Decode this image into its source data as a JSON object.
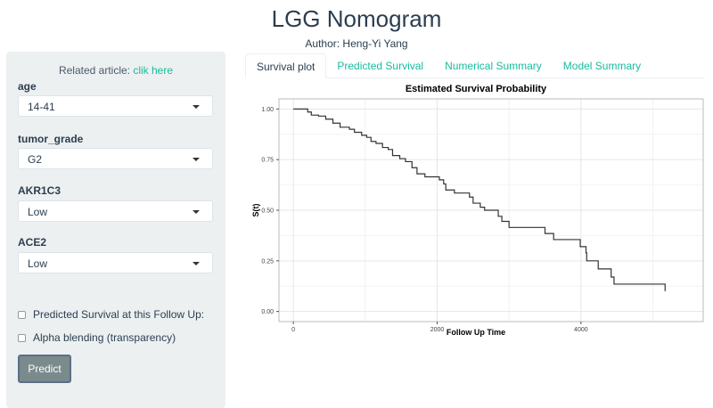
{
  "header": {
    "title": "LGG Nomogram",
    "author": "Author: Heng-Yi Yang"
  },
  "sidebar": {
    "related_prefix": "Related article: ",
    "related_link": "clik here",
    "fields": [
      {
        "label": "age",
        "value": "14-41"
      },
      {
        "label": "tumor_grade",
        "value": "G2"
      },
      {
        "label": "AKR1C3",
        "value": "Low"
      },
      {
        "label": "ACE2",
        "value": "Low"
      }
    ],
    "checkboxes": [
      {
        "label": "Predicted Survival at this Follow Up:",
        "checked": false
      },
      {
        "label": "Alpha blending (transparency)",
        "checked": false
      }
    ],
    "predict_label": "Predict"
  },
  "tabs": [
    {
      "label": "Survival plot",
      "active": true
    },
    {
      "label": "Predicted Survival"
    },
    {
      "label": "Numerical Summary"
    },
    {
      "label": "Model Summary"
    }
  ],
  "chart_data": {
    "type": "line",
    "title": "Estimated Survival Probability",
    "xlabel": "Follow Up Time",
    "ylabel": "S(t)",
    "xlim": [
      -200,
      5700
    ],
    "ylim": [
      -0.05,
      1.05
    ],
    "xticks": [
      0,
      2000,
      4000
    ],
    "yticks": [
      0,
      0.25,
      0.5,
      0.75,
      1
    ],
    "ytick_labels": [
      "0.00",
      "0.25",
      "0.50",
      "0.75",
      "1.00"
    ],
    "xtick_labels": [
      "0",
      "2000",
      "4000"
    ],
    "grid": true,
    "step": true,
    "points": [
      [
        0,
        1
      ],
      [
        100,
        1
      ],
      [
        200,
        0.985
      ],
      [
        250,
        0.97
      ],
      [
        350,
        0.965
      ],
      [
        450,
        0.95
      ],
      [
        550,
        0.93
      ],
      [
        650,
        0.91
      ],
      [
        780,
        0.9
      ],
      [
        850,
        0.885
      ],
      [
        950,
        0.87
      ],
      [
        1020,
        0.86
      ],
      [
        1080,
        0.84
      ],
      [
        1150,
        0.83
      ],
      [
        1240,
        0.81
      ],
      [
        1320,
        0.8
      ],
      [
        1380,
        0.77
      ],
      [
        1480,
        0.755
      ],
      [
        1560,
        0.74
      ],
      [
        1650,
        0.71
      ],
      [
        1720,
        0.68
      ],
      [
        1830,
        0.665
      ],
      [
        2030,
        0.65
      ],
      [
        2090,
        0.63
      ],
      [
        2120,
        0.6
      ],
      [
        2240,
        0.585
      ],
      [
        2450,
        0.565
      ],
      [
        2500,
        0.535
      ],
      [
        2600,
        0.515
      ],
      [
        2660,
        0.5
      ],
      [
        2850,
        0.47
      ],
      [
        2900,
        0.445
      ],
      [
        3000,
        0.415
      ],
      [
        3500,
        0.385
      ],
      [
        3620,
        0.355
      ],
      [
        3990,
        0.32
      ],
      [
        4070,
        0.29
      ],
      [
        4080,
        0.25
      ],
      [
        4240,
        0.21
      ],
      [
        4420,
        0.17
      ],
      [
        4460,
        0.135
      ],
      [
        5170,
        0.135
      ],
      [
        5170,
        0.1
      ]
    ]
  }
}
